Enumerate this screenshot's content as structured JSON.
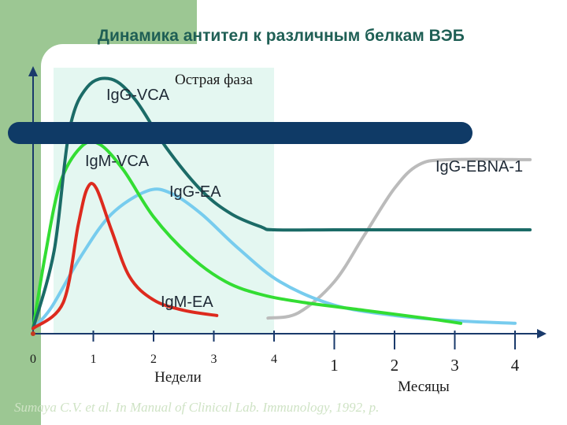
{
  "slide": {
    "title": "Динамика антител к различным белкам ВЭБ",
    "citation": "Sumaya C.V. et al. In Manual of Clinical Lab. Immunology, 1992, p."
  },
  "colors": {
    "background_band": "#9cc793",
    "phase_shade": "#e4f7f1",
    "title": "#1f5f55",
    "axis": "#1a3a6b",
    "phase_bar": "#0f3a66",
    "igg_vca": "#1b6b67",
    "igm_vca": "#33dd33",
    "igg_ea": "#77ccee",
    "igm_ea": "#dd2a1e",
    "igg_ebna1": "#bbbbbb"
  },
  "chart_data": {
    "type": "line",
    "title": "Динамика антител к различным белкам ВЭБ",
    "acute_phase_label": "Острая фаза",
    "acute_phase_extent": [
      0,
      4
    ],
    "x_axis": {
      "segments": [
        {
          "label": "Недели",
          "ticks": [
            "0",
            "1",
            "2",
            "3",
            "4"
          ],
          "range": [
            0,
            4
          ]
        },
        {
          "label": "Месяцы",
          "ticks": [
            "1",
            "2",
            "3",
            "4"
          ],
          "range": [
            1,
            4
          ]
        }
      ]
    },
    "x_unit_note": "continuous scale: 0–4 weeks, then months 1–4 mapped to positions 5–8",
    "ylim": [
      0,
      1
    ],
    "ylabel": "",
    "grid": false,
    "series": [
      {
        "name": "IgG-VCA",
        "color": "#1b6b67",
        "points": [
          [
            0,
            0.02
          ],
          [
            0.35,
            0.32
          ],
          [
            0.6,
            0.78
          ],
          [
            0.9,
            0.95
          ],
          [
            1.3,
            0.98
          ],
          [
            1.7,
            0.9
          ],
          [
            2.2,
            0.72
          ],
          [
            2.8,
            0.55
          ],
          [
            3.3,
            0.46
          ],
          [
            3.8,
            0.41
          ],
          [
            4.0,
            0.4
          ],
          [
            5,
            0.4
          ],
          [
            6,
            0.4
          ],
          [
            7,
            0.4
          ],
          [
            8.25,
            0.4
          ]
        ]
      },
      {
        "name": "IgM-VCA",
        "color": "#33dd33",
        "points": [
          [
            0,
            0.02
          ],
          [
            0.2,
            0.3
          ],
          [
            0.45,
            0.58
          ],
          [
            0.8,
            0.72
          ],
          [
            1.1,
            0.73
          ],
          [
            1.5,
            0.63
          ],
          [
            2.0,
            0.45
          ],
          [
            2.6,
            0.3
          ],
          [
            3.2,
            0.2
          ],
          [
            3.8,
            0.15
          ],
          [
            4.5,
            0.12
          ],
          [
            5.5,
            0.09
          ],
          [
            6.5,
            0.06
          ],
          [
            7.1,
            0.04
          ]
        ]
      },
      {
        "name": "IgG-EA",
        "color": "#77ccee",
        "points": [
          [
            0,
            0.02
          ],
          [
            0.3,
            0.1
          ],
          [
            0.8,
            0.3
          ],
          [
            1.3,
            0.46
          ],
          [
            1.9,
            0.55
          ],
          [
            2.3,
            0.54
          ],
          [
            2.8,
            0.46
          ],
          [
            3.4,
            0.33
          ],
          [
            4.1,
            0.2
          ],
          [
            5.0,
            0.11
          ],
          [
            6.0,
            0.07
          ],
          [
            7.0,
            0.05
          ],
          [
            8.0,
            0.04
          ]
        ]
      },
      {
        "name": "IgM-EA",
        "color": "#dd2a1e",
        "points": [
          [
            0,
            0.02
          ],
          [
            0.5,
            0.12
          ],
          [
            0.75,
            0.42
          ],
          [
            0.9,
            0.56
          ],
          [
            1.05,
            0.56
          ],
          [
            1.3,
            0.4
          ],
          [
            1.6,
            0.22
          ],
          [
            2.0,
            0.13
          ],
          [
            2.5,
            0.09
          ],
          [
            3.05,
            0.07
          ]
        ]
      },
      {
        "name": "IgG-EBNA-1",
        "color": "#bbbbbb",
        "points": [
          [
            3.9,
            0.06
          ],
          [
            4.4,
            0.08
          ],
          [
            5.0,
            0.2
          ],
          [
            5.5,
            0.38
          ],
          [
            6.0,
            0.56
          ],
          [
            6.4,
            0.65
          ],
          [
            6.9,
            0.67
          ],
          [
            8.25,
            0.67
          ]
        ]
      }
    ]
  }
}
